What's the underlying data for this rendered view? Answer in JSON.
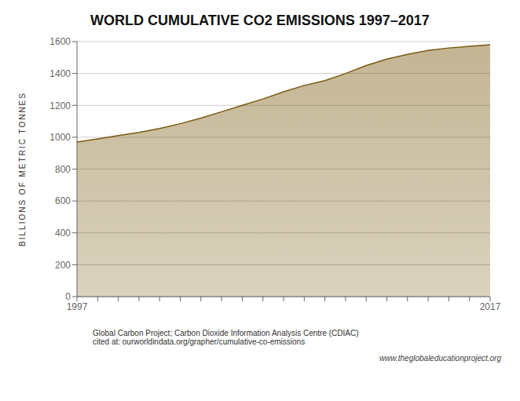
{
  "chart_data": {
    "type": "area",
    "title": "WORLD CUMULATIVE CO2 EMISSIONS 1997–2017",
    "ylabel": "BILLIONS OF METRIC TONNES",
    "categories": [
      "1997",
      null,
      null,
      null,
      null,
      null,
      null,
      null,
      null,
      null,
      null,
      null,
      null,
      null,
      null,
      null,
      null,
      null,
      null,
      null,
      "2017"
    ],
    "values": [
      970,
      990,
      1010,
      1030,
      1055,
      1085,
      1120,
      1160,
      1200,
      1240,
      1285,
      1325,
      1355,
      1400,
      1450,
      1490,
      1520,
      1545,
      1560,
      1570,
      1580
    ],
    "color": "#7a5a10",
    "ylim": [
      0,
      1600
    ],
    "yticks": [
      0,
      200,
      400,
      600,
      800,
      1000,
      1200,
      1400,
      1600
    ],
    "grid": true,
    "annotations": [
      "Global Carbon Project; Carbon Dioxide Information Analysis Centre (CDIAC)\ncited at: ourworldindata.org/grapher/cumulative-co-emissions",
      "www.theglobaleducationproject.org"
    ]
  }
}
